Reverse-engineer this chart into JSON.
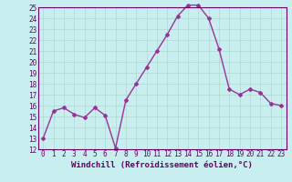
{
  "x": [
    0,
    1,
    2,
    3,
    4,
    5,
    6,
    7,
    8,
    9,
    10,
    11,
    12,
    13,
    14,
    15,
    16,
    17,
    18,
    19,
    20,
    21,
    22,
    23
  ],
  "y": [
    13,
    15.5,
    15.8,
    15.2,
    14.9,
    15.8,
    15.1,
    12.1,
    16.5,
    18.0,
    19.5,
    21.0,
    22.5,
    24.2,
    25.2,
    25.2,
    24.0,
    21.2,
    17.5,
    17.0,
    17.5,
    17.2,
    16.2,
    16.0
  ],
  "line_color": "#993399",
  "marker": "D",
  "marker_size": 2.0,
  "linewidth": 1.0,
  "xlabel": "Windchill (Refroidissement éolien,°C)",
  "xlabel_fontsize": 6.5,
  "ylim": [
    12,
    25
  ],
  "xlim": [
    -0.5,
    23.5
  ],
  "yticks": [
    12,
    13,
    14,
    15,
    16,
    17,
    18,
    19,
    20,
    21,
    22,
    23,
    24,
    25
  ],
  "xticks": [
    0,
    1,
    2,
    3,
    4,
    5,
    6,
    7,
    8,
    9,
    10,
    11,
    12,
    13,
    14,
    15,
    16,
    17,
    18,
    19,
    20,
    21,
    22,
    23
  ],
  "tick_fontsize": 5.5,
  "background_color": "#c8eef0",
  "grid_color": "#b0d8cc",
  "spine_color": "#660066",
  "tick_color": "#660066",
  "label_color": "#660066"
}
